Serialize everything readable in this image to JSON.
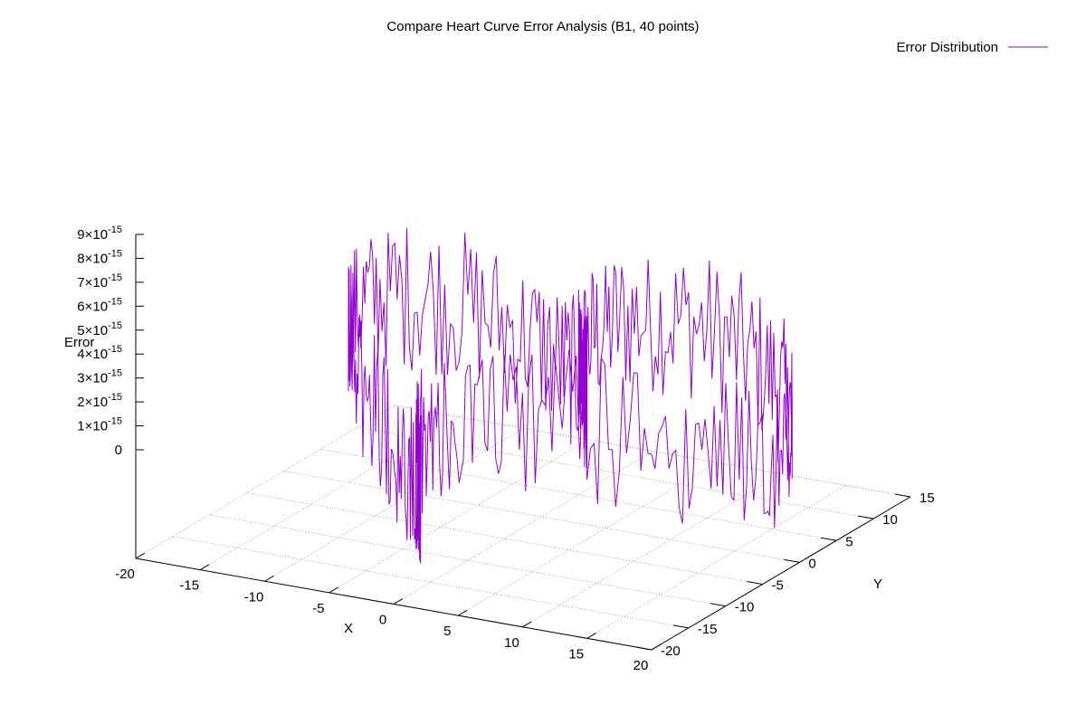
{
  "chart_data": {
    "type": "line",
    "title": "Compare Heart Curve Error Analysis (B1, 40 points)",
    "xlabel": "X",
    "ylabel": "Y",
    "zlabel": "Error",
    "xlim": [
      -20,
      20
    ],
    "ylim": [
      -20,
      15
    ],
    "zlim": [
      0,
      9e-15
    ],
    "xticks": [
      "-20",
      "-15",
      "-10",
      "-5",
      "0",
      "5",
      "10",
      "15",
      "20"
    ],
    "yticks": [
      "-20",
      "-15",
      "-10",
      "-5",
      "0",
      "5",
      "10",
      "15"
    ],
    "zticks": [
      {
        "mant": "9",
        "exp": "-15"
      },
      {
        "mant": "8",
        "exp": "-15"
      },
      {
        "mant": "7",
        "exp": "-15"
      },
      {
        "mant": "6",
        "exp": "-15"
      },
      {
        "mant": "5",
        "exp": "-15"
      },
      {
        "mant": "4",
        "exp": "-15"
      },
      {
        "mant": "3",
        "exp": "-15"
      },
      {
        "mant": "2",
        "exp": "-15"
      },
      {
        "mant": "1",
        "exp": "-15"
      },
      {
        "mant": "0",
        "exp": ""
      }
    ],
    "grid": true,
    "legend_position": "top-right",
    "series": [
      {
        "name": "Error Distribution",
        "color": "#9400d3",
        "description_note": "",
        "curve": "heart",
        "error_min": 0,
        "error_max": 9e-15
      }
    ]
  }
}
